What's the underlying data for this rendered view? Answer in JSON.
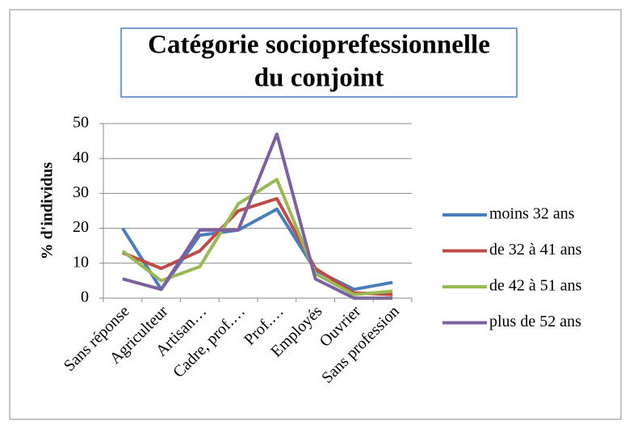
{
  "chart_data": {
    "type": "line",
    "title": [
      "Catégorie socioprefessionnelle",
      "du conjoint"
    ],
    "y_label": "% d'individus",
    "categories": [
      "Sans réponse",
      "Agriculteur",
      "Artisan…",
      "Cadre, prof.…",
      "Prof.…",
      "Employés",
      "Ouvrier",
      "Sans profession"
    ],
    "series": [
      {
        "name": "moins 32 ans",
        "color": "#4a7ebb",
        "values": [
          20,
          2.5,
          18,
          19.5,
          25.5,
          8,
          2.5,
          4.5
        ]
      },
      {
        "name": "de 32 à 41 ans",
        "color": "#be4b48",
        "values": [
          13,
          8.5,
          13.5,
          25,
          28.5,
          8.5,
          1.5,
          1
        ]
      },
      {
        "name": "de 42 à 51 ans",
        "color": "#98b954",
        "values": [
          13.5,
          5,
          9,
          27,
          34,
          7,
          1,
          2
        ]
      },
      {
        "name": "plus de 52 ans",
        "color": "#7d60a0",
        "values": [
          5.5,
          2.5,
          19.5,
          19.5,
          47,
          5.5,
          0,
          0
        ]
      }
    ],
    "ylim": [
      0,
      50
    ],
    "yticks": [
      0,
      10,
      20,
      30,
      40,
      50
    ],
    "grid": true,
    "legend": "right"
  }
}
